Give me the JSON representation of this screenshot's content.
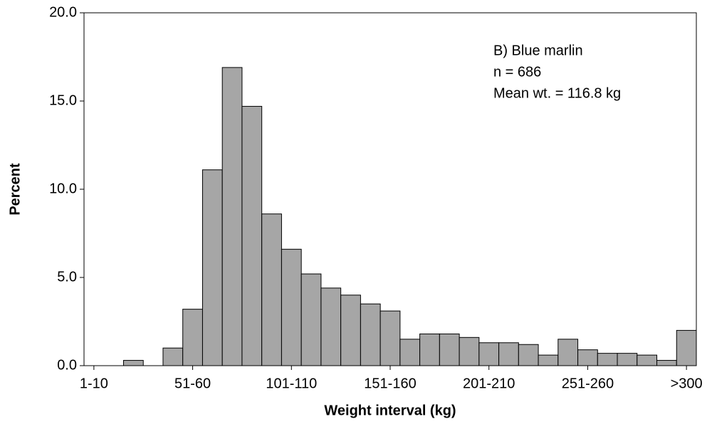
{
  "chart_data": {
    "type": "bar",
    "annotations": [
      "B) Blue marlin",
      "n = 686",
      "Mean wt. = 116.8 kg"
    ],
    "xlabel": "Weight interval (kg)",
    "ylabel": "Percent",
    "categories": [
      "1-10",
      null,
      null,
      null,
      null,
      "51-60",
      null,
      null,
      null,
      null,
      "101-110",
      null,
      null,
      null,
      null,
      "151-160",
      null,
      null,
      null,
      null,
      "201-210",
      null,
      null,
      null,
      null,
      "251-260",
      null,
      null,
      null,
      null,
      ">300"
    ],
    "values": [
      0,
      0,
      0.3,
      0,
      1.0,
      3.2,
      11.1,
      16.9,
      14.7,
      8.6,
      6.6,
      5.2,
      4.4,
      4.0,
      3.5,
      3.1,
      1.5,
      1.8,
      1.8,
      1.6,
      1.3,
      1.3,
      1.2,
      0.6,
      1.5,
      0.9,
      0.7,
      0.7,
      0.6,
      0.3,
      2.0
    ],
    "color": "#a6a6a6",
    "ylim": [
      0,
      20
    ],
    "yticks": [
      {
        "value": 0,
        "label": "0.0"
      },
      {
        "value": 5,
        "label": "5.0"
      },
      {
        "value": 10,
        "label": "10.0"
      },
      {
        "value": 15,
        "label": "15.0"
      },
      {
        "value": 20,
        "label": "20.0"
      }
    ]
  }
}
